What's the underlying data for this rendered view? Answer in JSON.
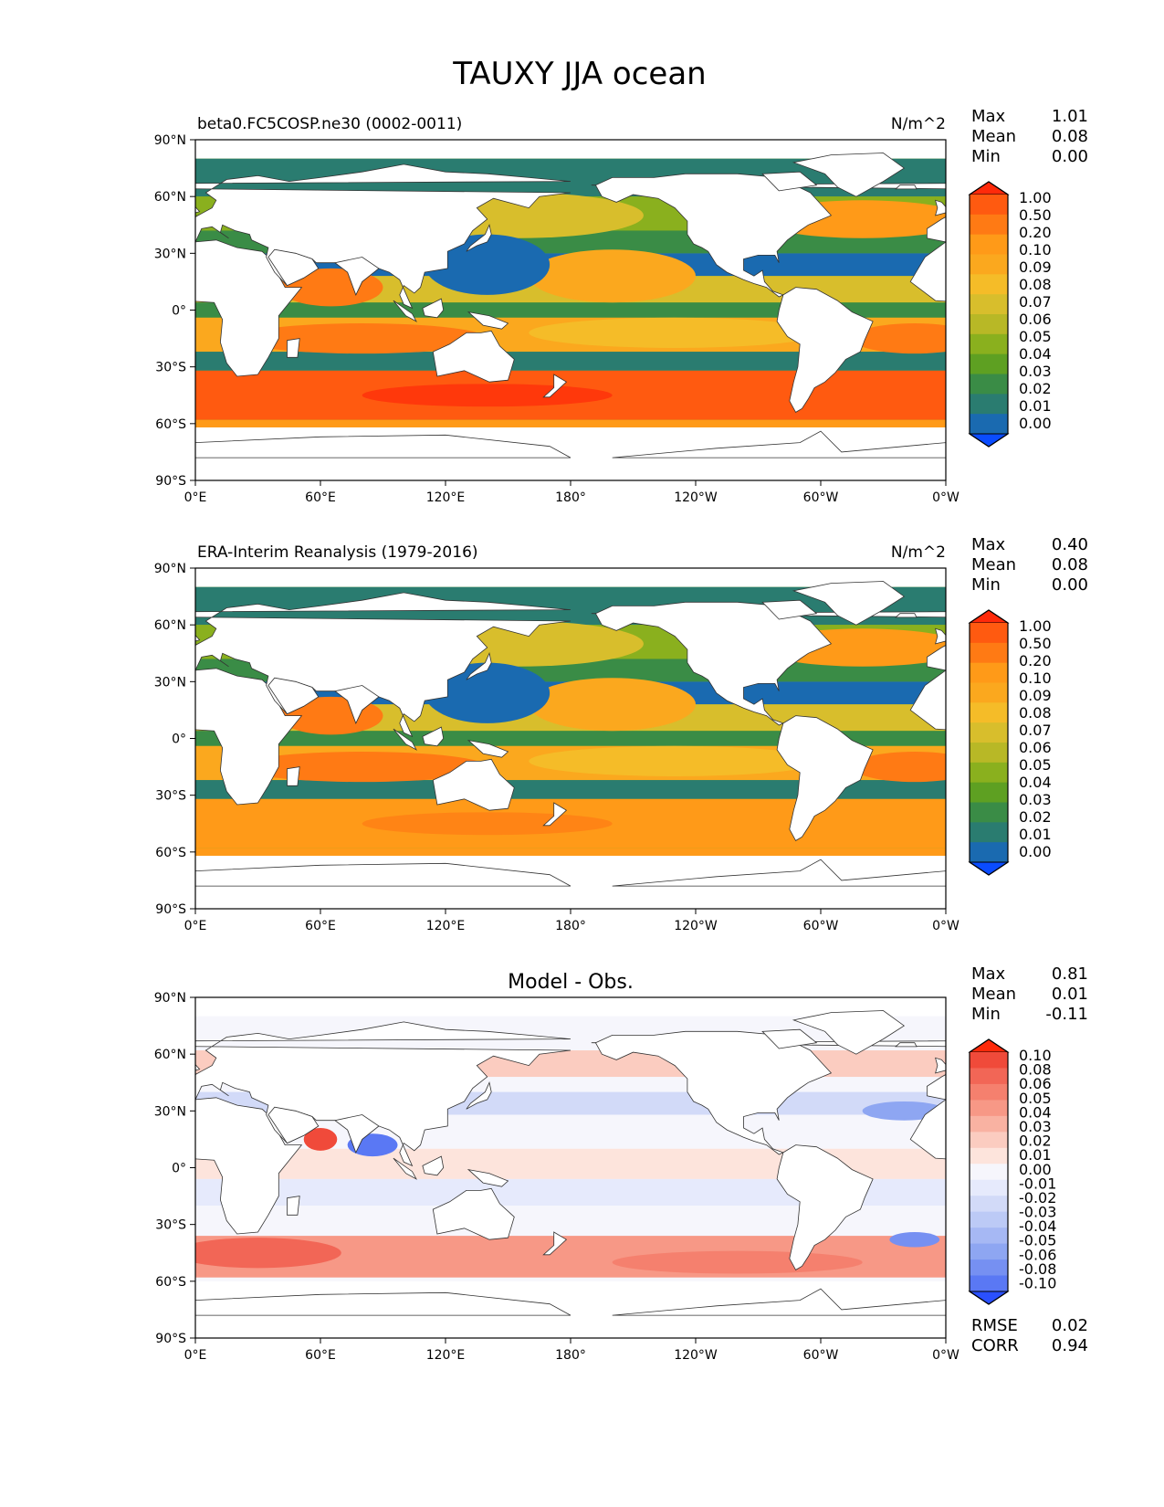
{
  "figure": {
    "title": "TAUXY JJA ocean"
  },
  "axes": {
    "lat_ticks": [
      "90°N",
      "60°N",
      "30°N",
      "0°",
      "30°S",
      "60°S",
      "90°S"
    ],
    "lon_ticks": [
      "0°E",
      "60°E",
      "120°E",
      "180°",
      "120°W",
      "60°W",
      "0°W"
    ]
  },
  "panels": [
    {
      "left_title": "beta0.FC5COSP.ne30 (0002-0011)",
      "center_title": "",
      "units": "N/m^2",
      "stats": [
        {
          "label": "Max",
          "value": "1.01"
        },
        {
          "label": "Mean",
          "value": "0.08"
        },
        {
          "label": "Min",
          "value": "0.00"
        }
      ],
      "colorbar": [
        "1.00",
        "0.50",
        "0.20",
        "0.10",
        "0.09",
        "0.08",
        "0.07",
        "0.06",
        "0.05",
        "0.04",
        "0.03",
        "0.02",
        "0.01",
        "0.00"
      ],
      "colors": [
        "#ff2a0a",
        "#ff5a10",
        "#ff7a14",
        "#ff9a18",
        "#fba81e",
        "#f5bc28",
        "#d8be2c",
        "#b8b826",
        "#8ab01e",
        "#5ea022",
        "#3a8c46",
        "#2a7c70",
        "#1a6ab0",
        "#0a4cff"
      ]
    },
    {
      "left_title": "ERA-Interim Reanalysis (1979-2016)",
      "center_title": "",
      "units": "N/m^2",
      "stats": [
        {
          "label": "Max",
          "value": "0.40"
        },
        {
          "label": "Mean",
          "value": "0.08"
        },
        {
          "label": "Min",
          "value": "0.00"
        }
      ],
      "colorbar": [
        "1.00",
        "0.50",
        "0.20",
        "0.10",
        "0.09",
        "0.08",
        "0.07",
        "0.06",
        "0.05",
        "0.04",
        "0.03",
        "0.02",
        "0.01",
        "0.00"
      ],
      "colors": [
        "#ff2a0a",
        "#ff5a10",
        "#ff7a14",
        "#ff9a18",
        "#fba81e",
        "#f5bc28",
        "#d8be2c",
        "#b8b826",
        "#8ab01e",
        "#5ea022",
        "#3a8c46",
        "#2a7c70",
        "#1a6ab0",
        "#0a4cff"
      ]
    },
    {
      "left_title": "",
      "center_title": "Model - Obs.",
      "units": "",
      "stats": [
        {
          "label": "Max",
          "value": "0.81"
        },
        {
          "label": "Mean",
          "value": "0.01"
        },
        {
          "label": "Min",
          "value": "-0.11"
        }
      ],
      "colorbar": [
        "0.10",
        "0.08",
        "0.06",
        "0.05",
        "0.04",
        "0.03",
        "0.02",
        "0.01",
        "0.00",
        "-0.01",
        "-0.02",
        "-0.03",
        "-0.04",
        "-0.05",
        "-0.06",
        "-0.08",
        "-0.10"
      ],
      "colors": [
        "#ff2a0a",
        "#f04a3a",
        "#f26656",
        "#f5806e",
        "#f79886",
        "#f9b2a2",
        "#fbccc0",
        "#fde4dc",
        "#f6f6fc",
        "#e6eafc",
        "#d2daf8",
        "#bccaf6",
        "#a6b8f4",
        "#8ea6f2",
        "#7690f2",
        "#5a78f4",
        "#2a50ff"
      ],
      "footer": [
        {
          "label": "RMSE",
          "value": "0.02"
        },
        {
          "label": "CORR",
          "value": "0.94"
        }
      ]
    }
  ]
}
